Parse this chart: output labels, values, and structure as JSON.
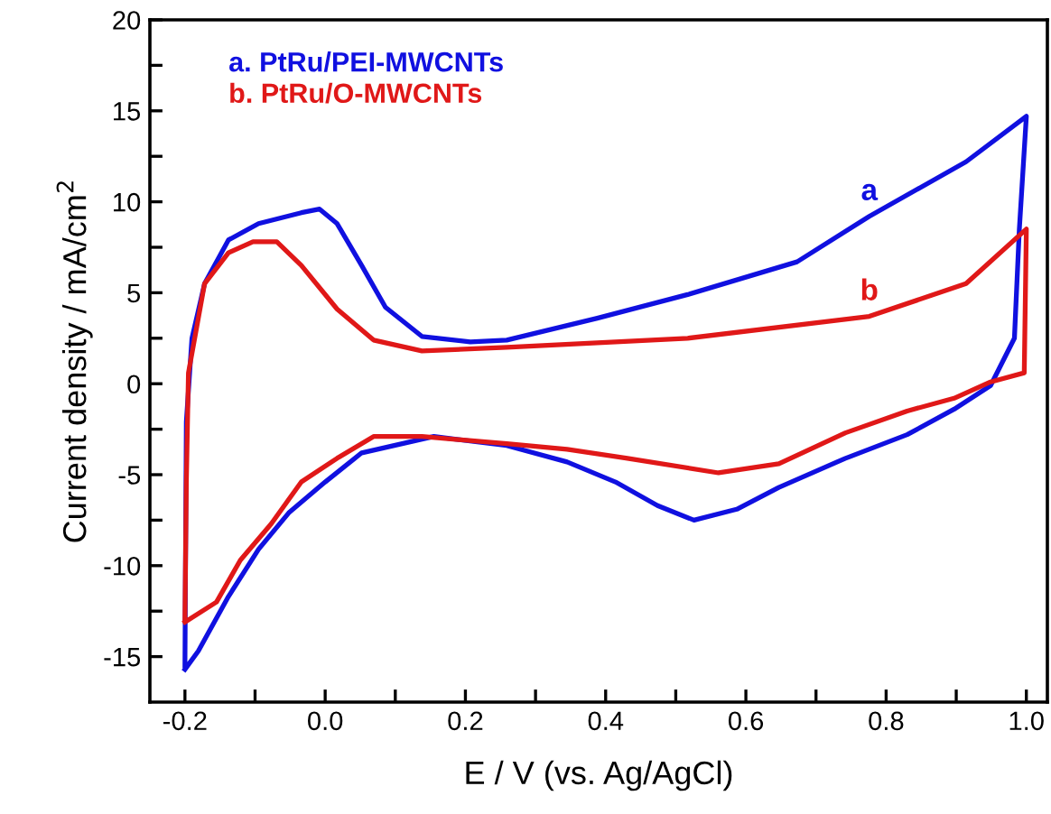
{
  "chart_data": {
    "type": "line",
    "xlabel": "E / V (vs. Ag/AgCl)",
    "ylabel": "Current density / mA/cm$^{2}$",
    "xlim": [
      -0.25,
      1.03
    ],
    "ylim": [
      -17.5,
      20
    ],
    "xticks": [
      -0.2,
      {
        "value": -0.1,
        "label": null
      },
      {
        "value": 0,
        "label": "0.0"
      },
      {
        "value": 0.1,
        "label": null
      },
      0.2,
      {
        "value": 0.3,
        "label": null
      },
      0.4,
      {
        "value": 0.5,
        "label": null
      },
      0.6,
      {
        "value": 0.7,
        "label": null
      },
      0.8,
      {
        "value": 0.9,
        "label": null
      },
      {
        "value": 1,
        "label": "1.0"
      }
    ],
    "yticks": [
      {
        "value": -15,
        "label": "-15"
      },
      {
        "value": -12.5,
        "label": null
      },
      {
        "value": -10,
        "label": "-10"
      },
      {
        "value": -7.5,
        "label": null
      },
      {
        "value": -5,
        "label": "-5"
      },
      {
        "value": -2.5,
        "label": null
      },
      0,
      {
        "value": 2.5,
        "label": null
      },
      5,
      {
        "value": 7.5,
        "label": null
      },
      10,
      {
        "value": 12.5,
        "label": null
      },
      15,
      {
        "value": 17.5,
        "label": null
      },
      20
    ],
    "grid": false,
    "legend": "top left",
    "marker": "none",
    "line_style": "solid",
    "series": [
      {
        "name": "a. PtRu/PEI-MWCNTs",
        "color": "#1010e0",
        "x": [
          -0.2,
          -0.198,
          -0.19,
          -0.172,
          -0.138,
          -0.095,
          -0.034,
          -0.008,
          0.017,
          0.052,
          0.086,
          0.138,
          0.207,
          0.259,
          0.388,
          0.517,
          0.673,
          0.776,
          0.914,
          1.0,
          0.99,
          0.983,
          0.949,
          0.897,
          0.83,
          0.742,
          0.647,
          0.587,
          0.526,
          0.474,
          0.414,
          0.345,
          0.259,
          0.155,
          0.052,
          0.0,
          -0.052,
          -0.095,
          -0.138,
          -0.181,
          -0.2
        ],
        "values": [
          -15.5,
          -2.1,
          2.5,
          5.5,
          7.9,
          8.8,
          9.4,
          9.6,
          8.8,
          6.5,
          4.2,
          2.6,
          2.3,
          2.4,
          3.6,
          4.9,
          6.7,
          9.2,
          12.2,
          14.7,
          8.5,
          2.5,
          -0.1,
          -1.4,
          -2.8,
          -4.1,
          -5.7,
          -6.9,
          -7.5,
          -6.7,
          -5.4,
          -4.3,
          -3.4,
          -2.9,
          -3.8,
          -5.4,
          -7.1,
          -9.1,
          -11.7,
          -14.7,
          -15.7
        ]
      },
      {
        "name": "b. PtRu/O-MWCNTs",
        "color": "#e01818",
        "x": [
          -0.2,
          -0.198,
          -0.195,
          -0.172,
          -0.138,
          -0.103,
          -0.069,
          -0.034,
          0.017,
          0.069,
          0.138,
          0.259,
          0.517,
          0.776,
          0.914,
          1.0,
          0.997,
          0.949,
          0.897,
          0.83,
          0.742,
          0.647,
          0.561,
          0.431,
          0.345,
          0.259,
          0.138,
          0.069,
          0.017,
          -0.034,
          -0.077,
          -0.121,
          -0.155,
          -0.2
        ],
        "values": [
          -12.9,
          -5.4,
          0.6,
          5.5,
          7.2,
          7.8,
          7.8,
          6.5,
          4.1,
          2.4,
          1.8,
          2.0,
          2.5,
          3.7,
          5.5,
          8.5,
          0.6,
          0.1,
          -0.8,
          -1.5,
          -2.7,
          -4.4,
          -4.9,
          -4.1,
          -3.6,
          -3.3,
          -2.9,
          -2.9,
          -4.1,
          -5.4,
          -7.7,
          -9.7,
          -12.0,
          -13.1
        ]
      }
    ],
    "annotations": [
      {
        "text": "a",
        "x": 0.776,
        "y": 9.2
      },
      {
        "text": "b",
        "x": 0.776,
        "y": 3.7
      }
    ]
  }
}
